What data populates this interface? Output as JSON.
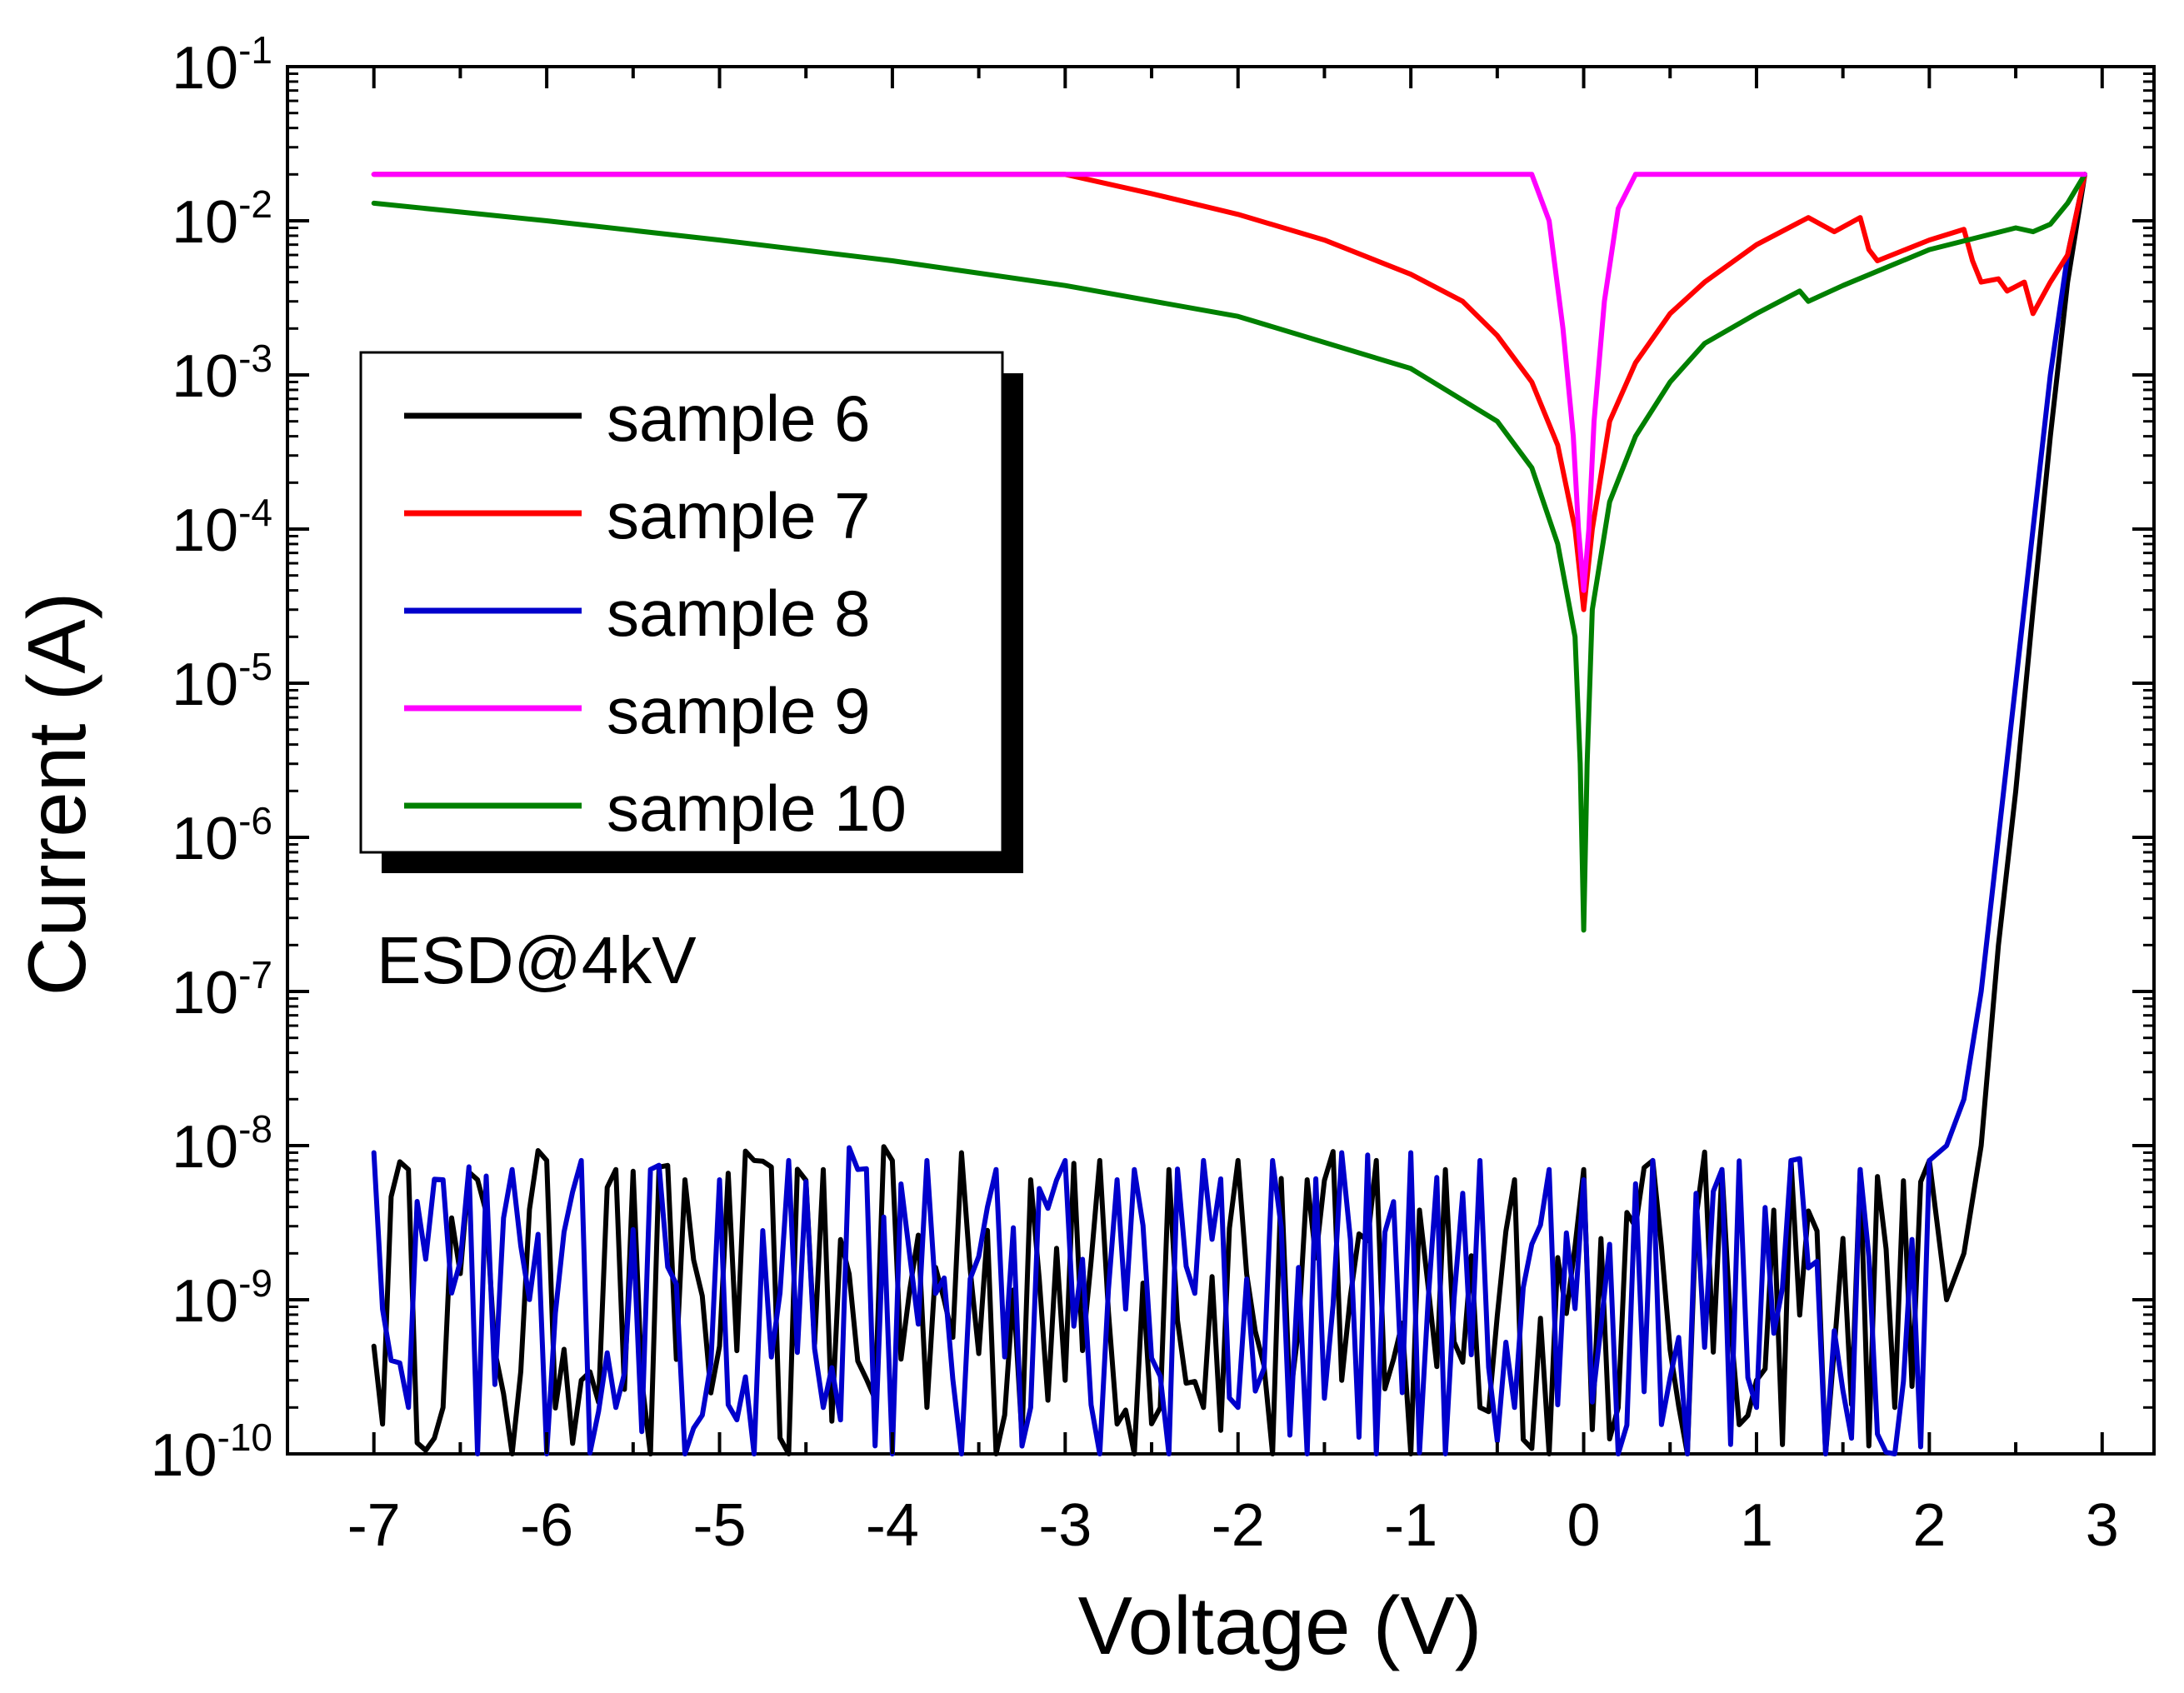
{
  "chart_data": {
    "type": "line",
    "title": "",
    "xlabel": "Voltage (V)",
    "ylabel": "Current (A)",
    "xlim": [
      -7.5,
      3.3
    ],
    "ylim": [
      1e-10,
      0.1
    ],
    "yscale": "log",
    "grid": false,
    "x_ticks": [
      -7,
      -6,
      -5,
      -4,
      -3,
      -2,
      -1,
      0,
      1,
      2,
      3
    ],
    "y_ticks": [
      {
        "base": "10",
        "exp": "-1",
        "value": 0.1
      },
      {
        "base": "10",
        "exp": "-2",
        "value": 0.01
      },
      {
        "base": "10",
        "exp": "-3",
        "value": 0.001
      },
      {
        "base": "10",
        "exp": "-4",
        "value": 0.0001
      },
      {
        "base": "10",
        "exp": "-5",
        "value": 1e-05
      },
      {
        "base": "10",
        "exp": "-6",
        "value": 1e-06
      },
      {
        "base": "10",
        "exp": "-7",
        "value": 1e-07
      },
      {
        "base": "10",
        "exp": "-8",
        "value": 1e-08
      },
      {
        "base": "10",
        "exp": "-9",
        "value": 1e-09
      },
      {
        "base": "10",
        "exp": "-10",
        "value": 1e-10
      }
    ],
    "annotation": "ESD@4kV",
    "legend_position": "upper-left",
    "series": [
      {
        "name": "sample 6",
        "color": "#000000",
        "noise": true,
        "x": [
          -7.0,
          -6.8,
          -6.6,
          -6.4,
          -6.2,
          -6.0,
          -5.8,
          -5.6,
          -5.4,
          -5.2,
          -5.0,
          -4.8,
          -4.6,
          -4.4,
          -4.2,
          -4.0,
          -3.8,
          -3.6,
          -3.4,
          -3.2,
          -3.0,
          -2.8,
          -2.6,
          -2.4,
          -2.2,
          -2.0,
          -1.8,
          -1.6,
          -1.4,
          -1.2,
          -1.0,
          -0.8,
          -0.6,
          -0.4,
          -0.2,
          0.0,
          0.2,
          0.4,
          0.6,
          0.8,
          1.0,
          1.2,
          1.4,
          1.6,
          1.8,
          2.0,
          2.1,
          2.2,
          2.3,
          2.4,
          2.5,
          2.6,
          2.7,
          2.8,
          2.9
        ],
        "y": [
          5e-10,
          7e-09,
          2e-10,
          6e-09,
          1e-10,
          8e-09,
          3e-10,
          7e-09,
          1e-10,
          6e-09,
          5e-10,
          8e-09,
          1e-10,
          7e-09,
          4e-10,
          8e-09,
          2e-10,
          9e-09,
          1e-10,
          6e-09,
          3e-10,
          8e-09,
          1e-10,
          7e-09,
          2e-10,
          8e-09,
          1e-10,
          6e-09,
          3e-10,
          8e-09,
          1e-10,
          7e-09,
          2e-10,
          6e-09,
          1e-10,
          7e-09,
          2e-10,
          8e-09,
          1e-10,
          7e-09,
          3e-10,
          8e-09,
          1e-10,
          7e-09,
          2e-10,
          8e-09,
          1e-09,
          2e-09,
          1e-08,
          2e-07,
          2e-06,
          3e-05,
          0.0004,
          0.004,
          0.02
        ]
      },
      {
        "name": "sample 7",
        "color": "#ff0000",
        "x": [
          -7.0,
          -3.0,
          -2.5,
          -2.0,
          -1.5,
          -1.0,
          -0.7,
          -0.5,
          -0.3,
          -0.15,
          -0.05,
          0.0,
          0.05,
          0.15,
          0.3,
          0.5,
          0.7,
          1.0,
          1.3,
          1.45,
          1.6,
          1.65,
          1.7,
          2.0,
          2.2,
          2.25,
          2.3,
          2.4,
          2.45,
          2.55,
          2.6,
          2.7,
          2.8,
          2.9
        ],
        "y": [
          0.02,
          0.02,
          0.015,
          0.011,
          0.0075,
          0.0045,
          0.003,
          0.0018,
          0.0009,
          0.00035,
          0.0001,
          3e-05,
          0.0001,
          0.0005,
          0.0012,
          0.0025,
          0.004,
          0.007,
          0.0105,
          0.0085,
          0.0105,
          0.0065,
          0.0055,
          0.0075,
          0.0088,
          0.0055,
          0.004,
          0.0042,
          0.0035,
          0.004,
          0.0025,
          0.004,
          0.006,
          0.02
        ]
      },
      {
        "name": "sample 8",
        "color": "#0000cc",
        "noise": true,
        "x": [
          -7.0,
          -6.8,
          -6.6,
          -6.4,
          -6.2,
          -6.0,
          -5.8,
          -5.6,
          -5.4,
          -5.2,
          -5.0,
          -4.8,
          -4.6,
          -4.4,
          -4.2,
          -4.0,
          -3.8,
          -3.6,
          -3.4,
          -3.2,
          -3.0,
          -2.8,
          -2.6,
          -2.4,
          -2.2,
          -2.0,
          -1.8,
          -1.6,
          -1.4,
          -1.2,
          -1.0,
          -0.8,
          -0.6,
          -0.4,
          -0.2,
          0.0,
          0.2,
          0.4,
          0.6,
          0.8,
          1.0,
          1.2,
          1.4,
          1.6,
          1.8,
          2.0,
          2.1,
          2.2,
          2.3,
          2.4,
          2.5,
          2.6,
          2.7,
          2.8,
          2.9
        ],
        "y": [
          9e-09,
          2e-10,
          6e-09,
          1e-10,
          7e-09,
          1e-10,
          8e-09,
          2e-10,
          7e-09,
          1e-10,
          6e-09,
          1e-10,
          8e-09,
          2e-10,
          7e-09,
          1e-10,
          8e-09,
          1e-10,
          7e-09,
          2e-10,
          8e-09,
          1e-10,
          7e-09,
          1e-10,
          8e-09,
          2e-10,
          8e-09,
          1e-10,
          9e-09,
          1e-10,
          9e-09,
          1e-10,
          8e-09,
          2e-10,
          7e-09,
          6e-09,
          1e-10,
          8e-09,
          1e-10,
          7e-09,
          2e-10,
          8e-09,
          1e-10,
          7e-09,
          1e-10,
          8e-09,
          1e-08,
          2e-08,
          1e-07,
          1e-06,
          1e-05,
          0.0001,
          0.001,
          0.006,
          0.02
        ]
      },
      {
        "name": "sample 9",
        "color": "#ff00ff",
        "x": [
          -7.0,
          -0.3,
          -0.2,
          -0.12,
          -0.06,
          -0.03,
          0.0,
          0.03,
          0.06,
          0.12,
          0.2,
          0.3,
          2.9
        ],
        "y": [
          0.02,
          0.02,
          0.01,
          0.002,
          0.0004,
          0.0001,
          4e-05,
          0.0001,
          0.0005,
          0.003,
          0.012,
          0.02,
          0.02
        ]
      },
      {
        "name": "sample 10",
        "color": "#008000",
        "x": [
          -7.0,
          -6.0,
          -5.0,
          -4.0,
          -3.0,
          -2.0,
          -1.0,
          -0.5,
          -0.3,
          -0.15,
          -0.05,
          -0.02,
          0.0,
          0.02,
          0.05,
          0.15,
          0.3,
          0.5,
          0.7,
          1.0,
          1.25,
          1.3,
          1.5,
          2.0,
          2.5,
          2.6,
          2.7,
          2.8,
          2.9
        ],
        "y": [
          0.013,
          0.01,
          0.0075,
          0.0055,
          0.0038,
          0.0024,
          0.0011,
          0.0005,
          0.00025,
          8e-05,
          2e-05,
          3e-06,
          2.5e-07,
          3e-06,
          3e-05,
          0.00015,
          0.0004,
          0.0009,
          0.0016,
          0.0025,
          0.0035,
          0.003,
          0.0038,
          0.0065,
          0.009,
          0.0085,
          0.0095,
          0.013,
          0.02
        ]
      }
    ]
  }
}
